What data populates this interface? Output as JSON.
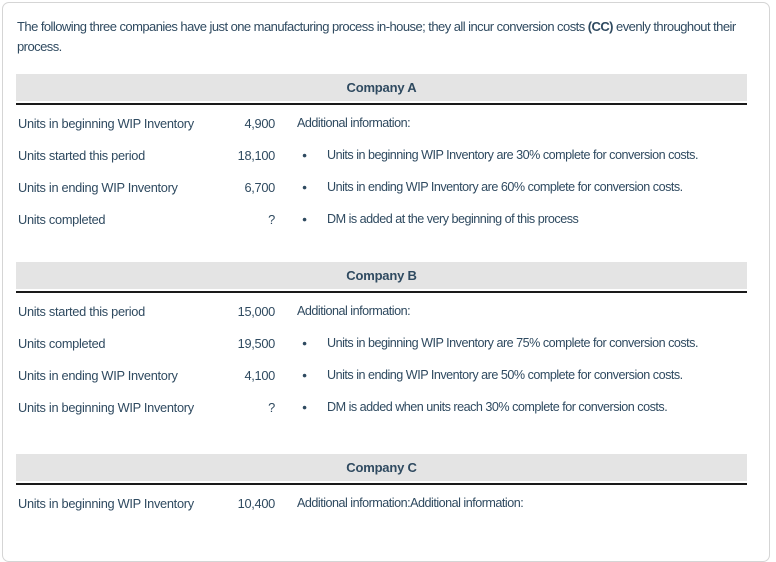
{
  "intro": {
    "part1": "The following three companies have just one manufacturing process in-house; they all incur conversion costs ",
    "bold": "(CC)",
    "part2": " evenly throughout their process."
  },
  "icons": {
    "bullet": "●"
  },
  "colors": {
    "text": "#2f4a60",
    "header_band": "#e4e4e4",
    "header_rule": "#1a1a1a",
    "card_border": "#d5d5d5"
  },
  "tables": [
    {
      "title": "Company A",
      "rows": [
        {
          "label": "Units in beginning WIP Inventory",
          "value": "4,900",
          "bullet": false,
          "info": "Additional information:"
        },
        {
          "label": "Units started this period",
          "value": "18,100",
          "bullet": true,
          "info": "Units in beginning WIP Inventory are 30% complete for conversion costs."
        },
        {
          "label": "Units in ending WIP Inventory",
          "value": "6,700",
          "bullet": true,
          "info": "Units in ending WIP Inventory are 60% complete for conversion costs."
        },
        {
          "label": "Units completed",
          "value": "?",
          "bullet": true,
          "info": "DM is added at the very beginning of this process"
        }
      ]
    },
    {
      "title": "Company B",
      "rows": [
        {
          "label": "Units started this period",
          "value": "15,000",
          "bullet": false,
          "info": "Additional information:"
        },
        {
          "label": "Units completed",
          "value": "19,500",
          "bullet": true,
          "info": "Units in beginning WIP Inventory are 75% complete for conversion costs."
        },
        {
          "label": "Units in ending WIP Inventory",
          "value": "4,100",
          "bullet": true,
          "info": "Units in ending WIP Inventory are 50% complete for conversion costs."
        },
        {
          "label": "Units in beginning WIP Inventory",
          "value": "?",
          "bullet": true,
          "info": "DM is added when units reach 30% complete for conversion costs."
        }
      ]
    },
    {
      "title": "Company C",
      "rows": [
        {
          "label": "Units in beginning WIP Inventory",
          "value": "10,400",
          "bullet": false,
          "info": "Additional information:Additional information:"
        }
      ]
    }
  ]
}
